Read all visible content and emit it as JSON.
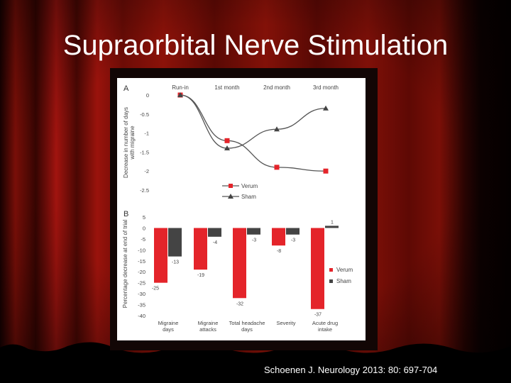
{
  "slide": {
    "title": "Supraorbital Nerve Stimulation",
    "citation": "Schoenen J.  Neurology 2013: 80: 697-704",
    "colors": {
      "curtain_dark": "#2a0303",
      "curtain_red": "#a3140f",
      "verum": "#e4242a",
      "sham": "#444444",
      "line": "#555555"
    }
  },
  "chart_data": [
    {
      "panel": "A",
      "type": "line",
      "ylabel": [
        "Decrease in number of days",
        "with migraine"
      ],
      "categories": [
        "Run-in",
        "1st month",
        "2nd month",
        "3rd month"
      ],
      "ylim": [
        -2.5,
        0
      ],
      "yticks": [
        0,
        -0.5,
        -1,
        -1.5,
        -2,
        -2.5
      ],
      "grid": false,
      "legend": "bottom-center",
      "series": [
        {
          "name": "Verum",
          "values": [
            0,
            -1.2,
            -1.9,
            -2.0
          ],
          "marker": "square",
          "color": "#e4242a"
        },
        {
          "name": "Sham",
          "values": [
            0,
            -1.4,
            -0.9,
            -0.35
          ],
          "marker": "triangle",
          "color": "#444444"
        }
      ]
    },
    {
      "panel": "B",
      "type": "bar",
      "ylabel": "Percentage decrease at end of trial",
      "categories": [
        [
          "Migraine",
          "days"
        ],
        [
          "Migraine",
          "attacks"
        ],
        [
          "Total headache",
          "days"
        ],
        [
          "Severity"
        ],
        [
          "Acute drug",
          "intake"
        ]
      ],
      "ylim": [
        -40,
        5
      ],
      "yticks": [
        5,
        0,
        -5,
        -10,
        -15,
        -20,
        -25,
        -30,
        -35,
        -40
      ],
      "grid": false,
      "legend": "right",
      "series": [
        {
          "name": "Verum",
          "values": [
            -25,
            -19,
            -32,
            -8,
            -37
          ],
          "labels": [
            "-25",
            "-19",
            "-32",
            "-8",
            "-37"
          ],
          "color": "#e4242a"
        },
        {
          "name": "Sham",
          "values": [
            -13,
            -4,
            -3,
            -3,
            1
          ],
          "labels": [
            "-13",
            "-4",
            "-3",
            "-3",
            "1"
          ],
          "color": "#444444"
        }
      ]
    }
  ]
}
